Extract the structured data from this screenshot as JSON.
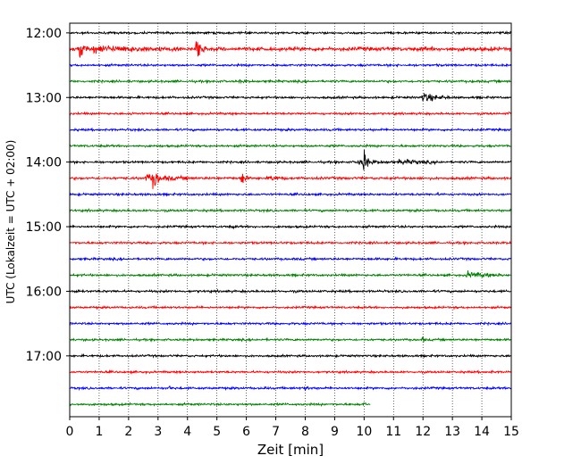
{
  "chart_data": {
    "type": "line",
    "xlabel": "Zeit  [min]",
    "ylabel": "UTC (Lokalzeit = UTC + 02:00)",
    "xlim": [
      0,
      15
    ],
    "x_ticks": [
      "0",
      "1",
      "2",
      "3",
      "4",
      "5",
      "6",
      "7",
      "8",
      "9",
      "10",
      "11",
      "12",
      "13",
      "14",
      "15"
    ],
    "y_tick_labels": [
      "12:00",
      "13:00",
      "14:00",
      "15:00",
      "16:00",
      "17:00"
    ],
    "ylim": [
      "11:51:00",
      "17:56:30"
    ],
    "grid": "vertical dotted",
    "trace_interval_min": 15,
    "trace_color_cycle": [
      "#000000",
      "#ff0000",
      "#0000ff",
      "#008000"
    ],
    "traces": [
      {
        "start": "12:00",
        "color": "#000000",
        "noise": 0.1,
        "events": []
      },
      {
        "start": "12:15",
        "color": "#ff0000",
        "noise": 0.45,
        "events": [
          {
            "t": 0.35,
            "amp": 6,
            "dur": 0.25
          },
          {
            "t": 0.8,
            "amp": 1.2,
            "dur": 3.0
          },
          {
            "t": 4.3,
            "amp": 5,
            "dur": 0.35
          },
          {
            "t": 12.0,
            "amp": 1.2,
            "dur": 0.1
          }
        ]
      },
      {
        "start": "12:30",
        "color": "#0000ff",
        "noise": 0.12,
        "events": []
      },
      {
        "start": "12:45",
        "color": "#008000",
        "noise": 0.12,
        "events": [
          {
            "t": 5.8,
            "amp": 0.5,
            "dur": 0.3
          },
          {
            "t": 13.7,
            "amp": 0.6,
            "dur": 0.1
          }
        ]
      },
      {
        "start": "13:00",
        "color": "#000000",
        "noise": 0.12,
        "events": [
          {
            "t": 12.0,
            "amp": 2.0,
            "dur": 0.9
          }
        ]
      },
      {
        "start": "13:15",
        "color": "#ff0000",
        "noise": 0.1,
        "events": [
          {
            "t": 2.1,
            "amp": 0.7,
            "dur": 0.1
          },
          {
            "t": 14.9,
            "amp": 0.6,
            "dur": 0.1
          }
        ]
      },
      {
        "start": "13:30",
        "color": "#0000ff",
        "noise": 0.12,
        "events": []
      },
      {
        "start": "13:45",
        "color": "#008000",
        "noise": 0.12,
        "events": []
      },
      {
        "start": "14:00",
        "color": "#000000",
        "noise": 0.12,
        "events": [
          {
            "t": 10.0,
            "amp": 6,
            "dur": 0.15
          },
          {
            "t": 9.8,
            "amp": 1.2,
            "dur": 1.2
          },
          {
            "t": 11.2,
            "amp": 1.0,
            "dur": 1.5
          }
        ]
      },
      {
        "start": "14:15",
        "color": "#ff0000",
        "noise": 0.18,
        "events": [
          {
            "t": 2.85,
            "amp": 5,
            "dur": 0.2
          },
          {
            "t": 2.6,
            "amp": 1.5,
            "dur": 1.6
          },
          {
            "t": 5.85,
            "amp": 4,
            "dur": 0.2
          },
          {
            "t": 6.8,
            "amp": 1.2,
            "dur": 0.6
          }
        ]
      },
      {
        "start": "14:30",
        "color": "#0000ff",
        "noise": 0.12,
        "events": [
          {
            "t": 12.5,
            "amp": 0.5,
            "dur": 0.1
          }
        ]
      },
      {
        "start": "14:45",
        "color": "#008000",
        "noise": 0.12,
        "events": []
      },
      {
        "start": "15:00",
        "color": "#000000",
        "noise": 0.12,
        "events": [
          {
            "t": 5.5,
            "amp": 0.6,
            "dur": 0.2
          }
        ]
      },
      {
        "start": "15:15",
        "color": "#ff0000",
        "noise": 0.12,
        "events": []
      },
      {
        "start": "15:30",
        "color": "#0000ff",
        "noise": 0.12,
        "events": []
      },
      {
        "start": "15:45",
        "color": "#008000",
        "noise": 0.12,
        "events": [
          {
            "t": 13.5,
            "amp": 1.2,
            "dur": 1.3
          }
        ]
      },
      {
        "start": "16:00",
        "color": "#000000",
        "noise": 0.14,
        "events": [
          {
            "t": 0.2,
            "amp": 0.6,
            "dur": 0.2
          }
        ]
      },
      {
        "start": "16:15",
        "color": "#ff0000",
        "noise": 0.1,
        "events": []
      },
      {
        "start": "16:30",
        "color": "#0000ff",
        "noise": 0.12,
        "events": []
      },
      {
        "start": "16:45",
        "color": "#008000",
        "noise": 0.1,
        "events": [
          {
            "t": 12.0,
            "amp": 1.2,
            "dur": 0.1
          }
        ]
      },
      {
        "start": "17:00",
        "color": "#000000",
        "noise": 0.1,
        "events": []
      },
      {
        "start": "17:15",
        "color": "#ff0000",
        "noise": 0.1,
        "events": [
          {
            "t": 14.3,
            "amp": 0.5,
            "dur": 0.2
          }
        ]
      },
      {
        "start": "17:30",
        "color": "#0000ff",
        "noise": 0.12,
        "events": [
          {
            "t": 3.4,
            "amp": 0.8,
            "dur": 0.1
          },
          {
            "t": 6.6,
            "amp": 0.8,
            "dur": 0.1
          },
          {
            "t": 8.0,
            "amp": 0.6,
            "dur": 0.3
          }
        ]
      },
      {
        "start": "17:45",
        "color": "#008000",
        "noise": 0.12,
        "end_min": 10.2,
        "events": [
          {
            "t": 10.0,
            "amp": 0.8,
            "dur": 0.15
          }
        ]
      }
    ]
  }
}
